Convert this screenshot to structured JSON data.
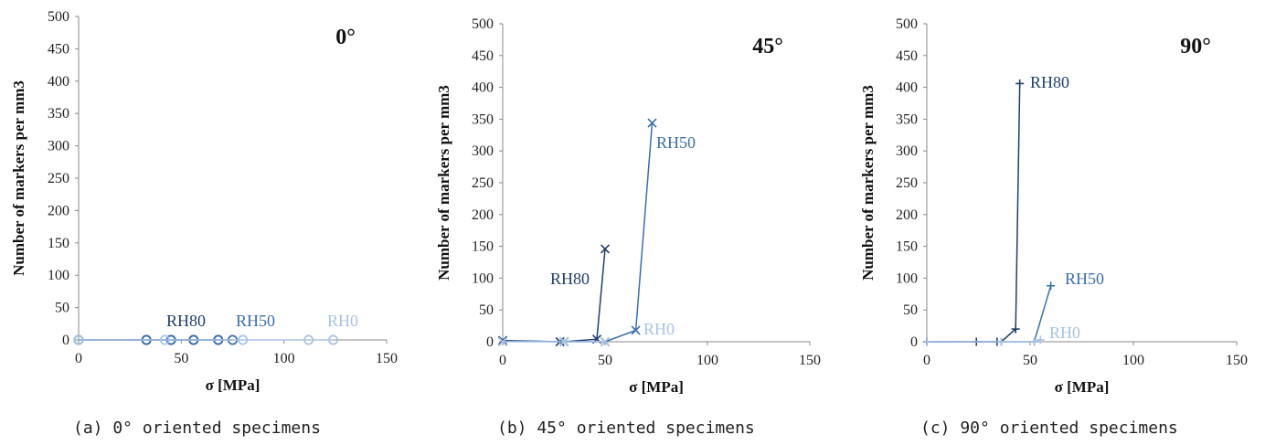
{
  "chart_data": [
    {
      "type": "line",
      "angle_label": "0°",
      "xlabel": "σ [MPa]",
      "ylabel": "Number of markers per mm3",
      "xlim": [
        0,
        150
      ],
      "ylim": [
        0,
        500
      ],
      "xticks": [
        0,
        50,
        100,
        150
      ],
      "yticks": [
        0,
        50,
        100,
        150,
        200,
        250,
        300,
        350,
        400,
        450,
        500
      ],
      "caption": "(a) 0° oriented specimens",
      "marker": "circle",
      "series": [
        {
          "name": "RH80",
          "color": "#1f3f6e",
          "x": [
            0,
            33,
            45,
            56,
            68
          ],
          "y": [
            0,
            0,
            0,
            0,
            0
          ]
        },
        {
          "name": "RH50",
          "color": "#3a6fb0",
          "x": [
            0,
            33,
            45,
            56,
            68,
            75
          ],
          "y": [
            0,
            0,
            0,
            0,
            0,
            0
          ]
        },
        {
          "name": "RH0",
          "color": "#a9c3e3",
          "x": [
            0,
            42,
            80,
            112,
            124
          ],
          "y": [
            0,
            0,
            0,
            0,
            0
          ]
        }
      ]
    },
    {
      "type": "line",
      "angle_label": "45°",
      "xlabel": "σ [MPa]",
      "ylabel": "Number of markers per mm3",
      "xlim": [
        0,
        150
      ],
      "ylim": [
        0,
        500
      ],
      "xticks": [
        0,
        50,
        100,
        150
      ],
      "yticks": [
        0,
        50,
        100,
        150,
        200,
        250,
        300,
        350,
        400,
        450,
        500
      ],
      "caption": "(b) 45° oriented specimens",
      "marker": "x",
      "series": [
        {
          "name": "RH80",
          "color": "#1f3f6e",
          "x": [
            0,
            28,
            30,
            46,
            50
          ],
          "y": [
            2,
            0,
            0,
            4,
            146
          ]
        },
        {
          "name": "RH50",
          "color": "#3a6fb0",
          "x": [
            0,
            30,
            50,
            65,
            73
          ],
          "y": [
            1,
            0,
            0,
            18,
            344
          ]
        },
        {
          "name": "RH0",
          "color": "#a9c3e3",
          "x": [
            0,
            30,
            50
          ],
          "y": [
            0,
            0,
            0
          ]
        }
      ]
    },
    {
      "type": "line",
      "angle_label": "90°",
      "xlabel": "σ [MPa]",
      "ylabel": "Number of markers per mm3",
      "xlim": [
        0,
        150
      ],
      "ylim": [
        0,
        500
      ],
      "xticks": [
        0,
        50,
        100,
        150
      ],
      "yticks": [
        0,
        50,
        100,
        150,
        200,
        250,
        300,
        350,
        400,
        450,
        500
      ],
      "caption": "(c) 90° oriented specimens",
      "marker": "plus",
      "series": [
        {
          "name": "RH80",
          "color": "#1f3f6e",
          "x": [
            0,
            24,
            34,
            36,
            43,
            45
          ],
          "y": [
            0,
            0,
            0,
            0,
            20,
            406
          ]
        },
        {
          "name": "RH50",
          "color": "#3a6fb0",
          "x": [
            0,
            36,
            52,
            60
          ],
          "y": [
            0,
            0,
            0,
            88
          ]
        },
        {
          "name": "RH0",
          "color": "#a9c3e3",
          "x": [
            0,
            36,
            52,
            55
          ],
          "y": [
            0,
            0,
            0,
            3
          ]
        }
      ]
    }
  ]
}
